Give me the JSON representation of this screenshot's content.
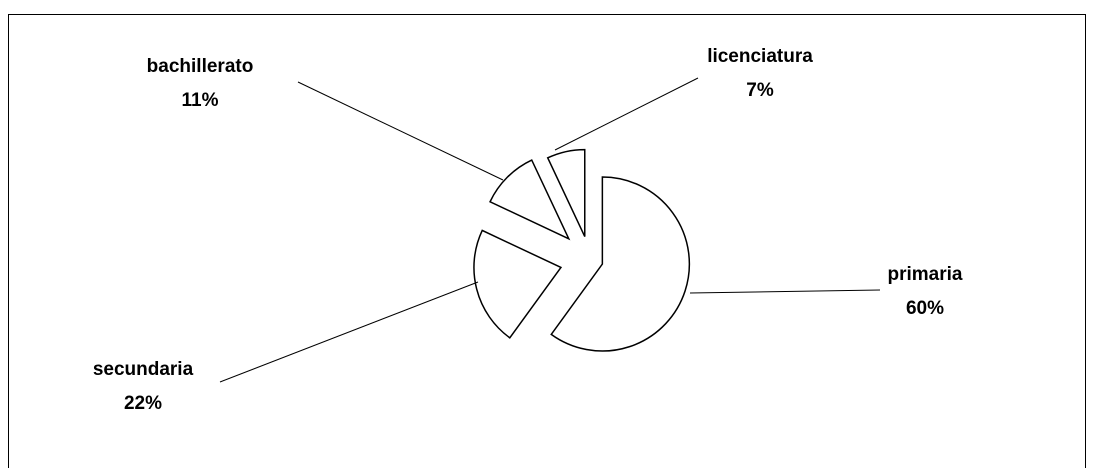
{
  "chart_data": {
    "type": "pie",
    "categories": [
      "primaria",
      "secundaria",
      "bachillerato",
      "licenciatura"
    ],
    "values": [
      60,
      22,
      11,
      7
    ],
    "value_labels": [
      "60%",
      "22%",
      "11%",
      "7%"
    ],
    "colors": [
      "#ffffff",
      "#ffffff",
      "#ffffff",
      "#ffffff"
    ]
  }
}
